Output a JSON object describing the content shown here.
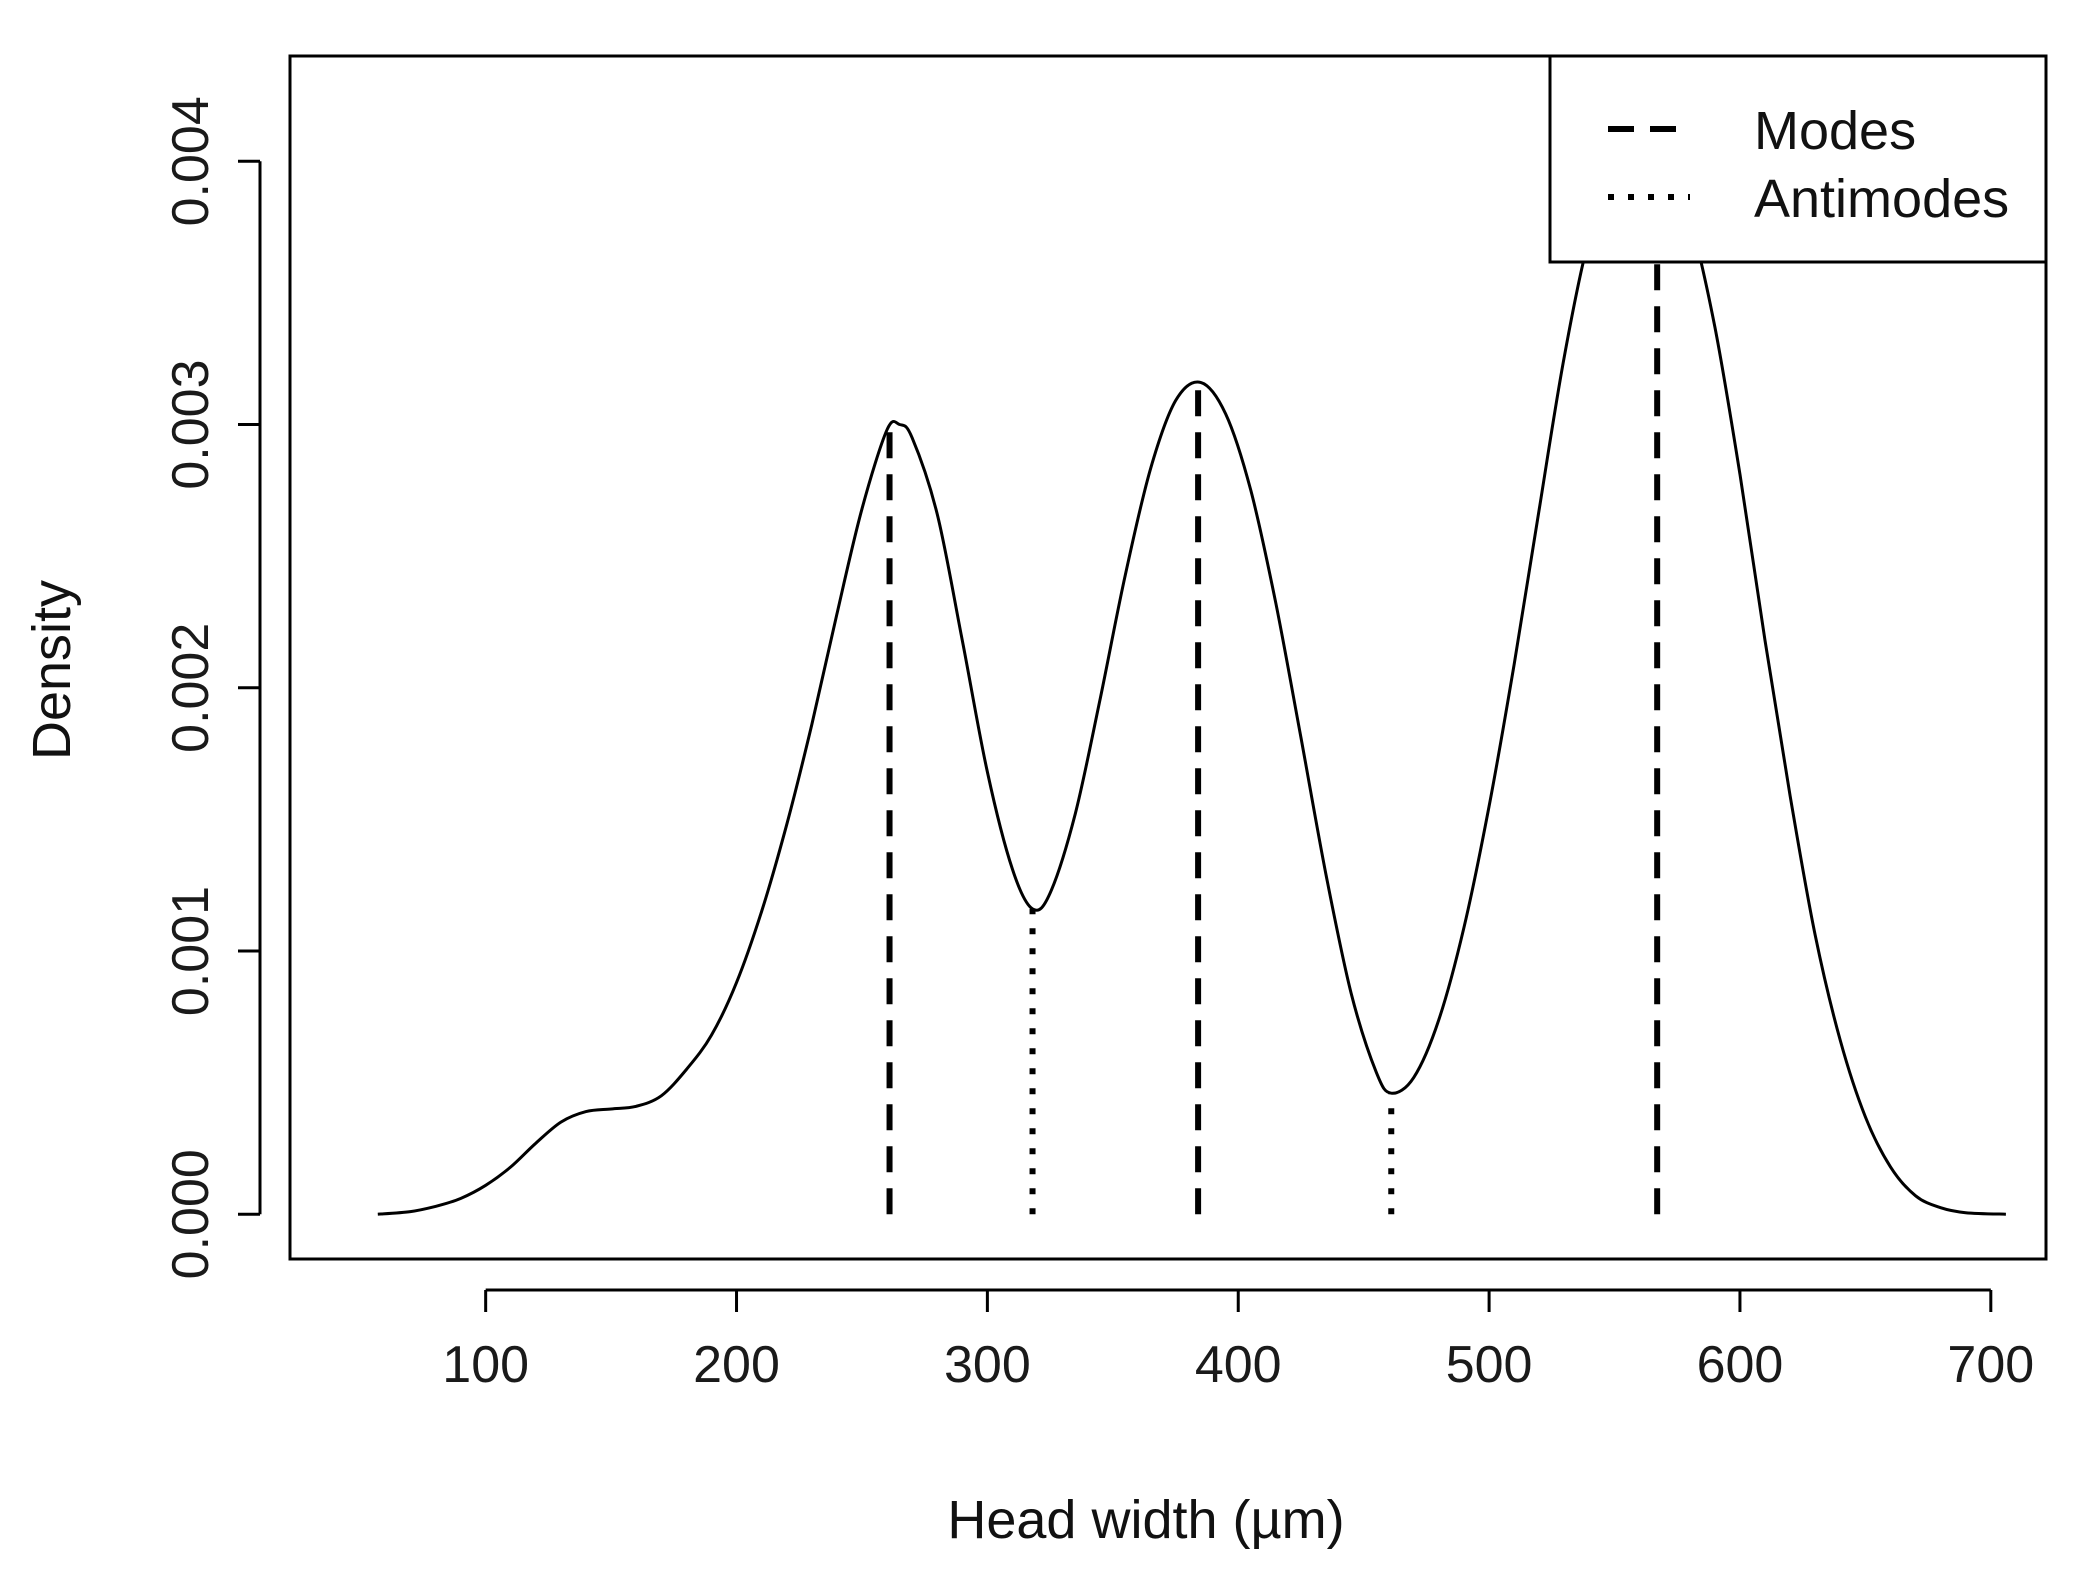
{
  "chart_data": {
    "type": "line",
    "title": "",
    "xlabel": "Head width (µm)",
    "ylabel": "Density",
    "xlim": [
      22,
      722
    ],
    "ylim": [
      -0.00017,
      0.0044
    ],
    "x_ticks": [
      100,
      200,
      300,
      400,
      500,
      600,
      700
    ],
    "x_tick_labels": [
      "100",
      "200",
      "300",
      "400",
      "500",
      "600",
      "700"
    ],
    "y_ticks": [
      0.0,
      0.001,
      0.002,
      0.003,
      0.004
    ],
    "y_tick_labels": [
      "0.000",
      "0.001",
      "0.002",
      "0.003",
      "0.004"
    ],
    "grid": false,
    "legend_position": "top-right",
    "legend": [
      {
        "label": "Modes",
        "style": "dashed"
      },
      {
        "label": "Antimodes",
        "style": "dotted"
      }
    ],
    "series": [
      {
        "style": "solid",
        "color": "#000000",
        "points": [
          [
            57,
            0.0
          ],
          [
            70,
            1e-05
          ],
          [
            80,
            3e-05
          ],
          [
            90,
            6e-05
          ],
          [
            100,
            0.00011
          ],
          [
            110,
            0.00018
          ],
          [
            120,
            0.00027
          ],
          [
            130,
            0.00035
          ],
          [
            140,
            0.00039
          ],
          [
            150,
            0.0004
          ],
          [
            160,
            0.00041
          ],
          [
            170,
            0.00045
          ],
          [
            180,
            0.00055
          ],
          [
            190,
            0.00068
          ],
          [
            200,
            0.00088
          ],
          [
            210,
            0.00115
          ],
          [
            220,
            0.00148
          ],
          [
            230,
            0.00186
          ],
          [
            240,
            0.00228
          ],
          [
            250,
            0.00268
          ],
          [
            260,
            0.00298
          ],
          [
            265,
            0.003
          ],
          [
            270,
            0.00295
          ],
          [
            280,
            0.00266
          ],
          [
            290,
            0.00218
          ],
          [
            300,
            0.00168
          ],
          [
            310,
            0.00131
          ],
          [
            318,
            0.00116
          ],
          [
            325,
            0.00122
          ],
          [
            335,
            0.00152
          ],
          [
            345,
            0.00196
          ],
          [
            355,
            0.00243
          ],
          [
            365,
            0.00283
          ],
          [
            375,
            0.00309
          ],
          [
            385,
            0.00316
          ],
          [
            395,
            0.00304
          ],
          [
            405,
            0.00275
          ],
          [
            415,
            0.00232
          ],
          [
            425,
            0.00181
          ],
          [
            435,
            0.00129
          ],
          [
            445,
            0.00084
          ],
          [
            455,
            0.00054
          ],
          [
            461,
            0.00046
          ],
          [
            470,
            0.00052
          ],
          [
            480,
            0.00074
          ],
          [
            490,
            0.00109
          ],
          [
            500,
            0.00155
          ],
          [
            510,
            0.00209
          ],
          [
            520,
            0.00268
          ],
          [
            530,
            0.00326
          ],
          [
            540,
            0.00371
          ],
          [
            550,
            0.00393
          ],
          [
            560,
            0.00399
          ],
          [
            570,
            0.00398
          ],
          [
            580,
            0.00378
          ],
          [
            590,
            0.00337
          ],
          [
            600,
            0.00281
          ],
          [
            610,
            0.00218
          ],
          [
            620,
            0.00159
          ],
          [
            630,
            0.00106
          ],
          [
            640,
            0.00066
          ],
          [
            650,
            0.00037
          ],
          [
            660,
            0.00018
          ],
          [
            670,
            7e-05
          ],
          [
            680,
            2.5e-05
          ],
          [
            690,
            6e-06
          ],
          [
            706,
            0.0
          ]
        ]
      }
    ],
    "modes": [
      {
        "x": 261,
        "y": 0.003
      },
      {
        "x": 384,
        "y": 0.00316
      },
      {
        "x": 567,
        "y": 0.00399
      }
    ],
    "antimodes": [
      {
        "x": 318,
        "y": 0.00116
      },
      {
        "x": 461,
        "y": 0.00046
      }
    ]
  }
}
